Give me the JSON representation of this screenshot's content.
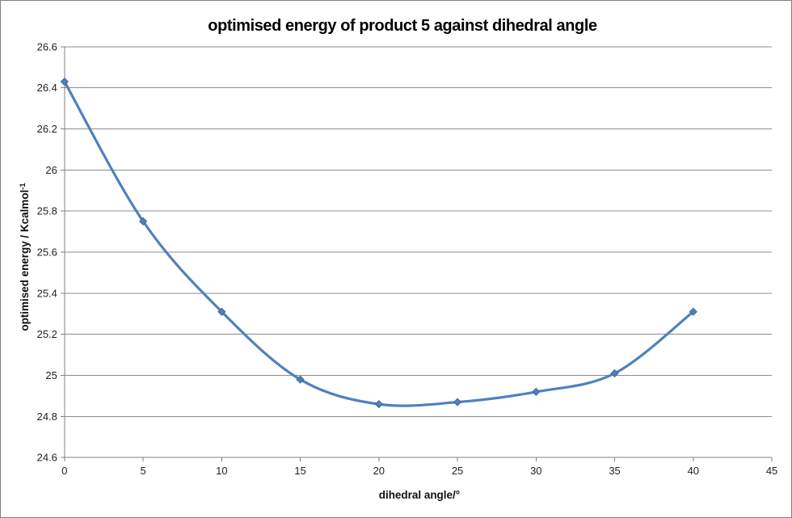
{
  "chart_data": {
    "type": "line",
    "title": "optimised energy of product 5 against dihedral angle",
    "xlabel": "dihedral angle/°",
    "ylabel_main": "optimised energy / Kcalmol",
    "ylabel_sup": "-1",
    "x": [
      0,
      5,
      10,
      15,
      20,
      25,
      30,
      35,
      40
    ],
    "values": [
      26.43,
      25.75,
      25.31,
      24.98,
      24.86,
      24.87,
      24.92,
      25.01,
      25.31
    ],
    "xlim": [
      0,
      45
    ],
    "ylim": [
      24.6,
      26.6
    ],
    "x_ticks": [
      0,
      5,
      10,
      15,
      20,
      25,
      30,
      35,
      40,
      45
    ],
    "x_tick_labels": [
      "0",
      "5",
      "10",
      "15",
      "20",
      "25",
      "30",
      "35",
      "40",
      "45"
    ],
    "y_ticks": [
      24.6,
      24.8,
      25,
      25.2,
      25.4,
      25.6,
      25.8,
      26,
      26.2,
      26.4,
      26.6
    ],
    "y_tick_labels": [
      "24.6",
      "24.8",
      "25",
      "25.2",
      "25.4",
      "25.6",
      "25.8",
      "26",
      "26.2",
      "26.4",
      "26.6"
    ],
    "grid": true,
    "legend": "none",
    "smooth": true,
    "marker": "diamond",
    "series_color": "#4F81BD",
    "marker_edge_color": "#3D6899",
    "gridline_color": "#8C8C8C",
    "axis_color": "#808080",
    "text_color": "#1a1a1a"
  }
}
